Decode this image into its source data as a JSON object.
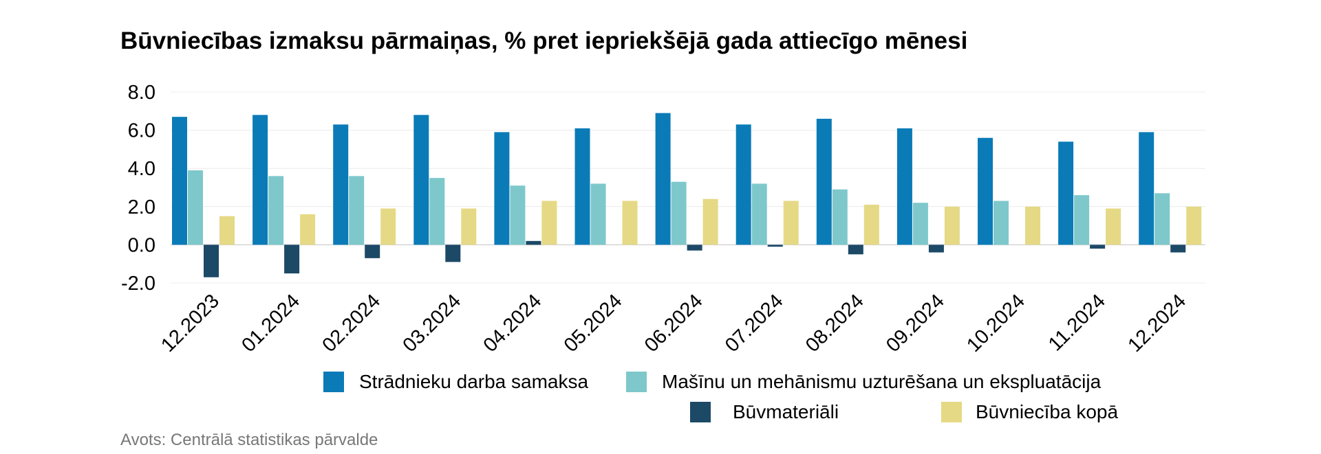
{
  "chart_data": {
    "type": "bar",
    "title": "Būvniecības izmaksu pārmaiņas, % pret iepriekšējā gada attiecīgo mēnesi",
    "xlabel": "",
    "ylabel": "",
    "ylim": [
      -2,
      8
    ],
    "yticks": [
      "8.0",
      "6.0",
      "4.0",
      "2.0",
      "0.0",
      "-2.0"
    ],
    "categories": [
      "12.2023",
      "01.2024",
      "02.2024",
      "03.2024",
      "04.2024",
      "05.2024",
      "06.2024",
      "07.2024",
      "08.2024",
      "09.2024",
      "10.2024",
      "11.2024",
      "12.2024"
    ],
    "series": [
      {
        "name": "Strādnieku darba samaksa",
        "color": "#0a7bb7",
        "values": [
          6.7,
          6.8,
          6.3,
          6.8,
          5.9,
          6.1,
          6.9,
          6.3,
          6.6,
          6.1,
          5.6,
          5.4,
          5.9
        ]
      },
      {
        "name": "Mašīnu un mehānismu uzturēšana un ekspluatācija",
        "color": "#7ec8cb",
        "values": [
          3.9,
          3.6,
          3.6,
          3.5,
          3.1,
          3.2,
          3.3,
          3.2,
          2.9,
          2.2,
          2.3,
          2.6,
          2.7
        ]
      },
      {
        "name": "Būvmateriāli",
        "color": "#1c4966",
        "values": [
          -1.7,
          -1.5,
          -0.7,
          -0.9,
          0.2,
          0.0,
          -0.3,
          -0.1,
          -0.5,
          -0.4,
          0.0,
          -0.2,
          -0.4
        ]
      },
      {
        "name": "Būvniecība kopā",
        "color": "#e5d985",
        "values": [
          1.5,
          1.6,
          1.9,
          1.9,
          2.3,
          2.3,
          2.4,
          2.3,
          2.1,
          2.0,
          2.0,
          1.9,
          2.0
        ]
      }
    ],
    "legend_position": "bottom",
    "grid": true
  },
  "source": "Avots: Centrālā statistikas pārvalde"
}
